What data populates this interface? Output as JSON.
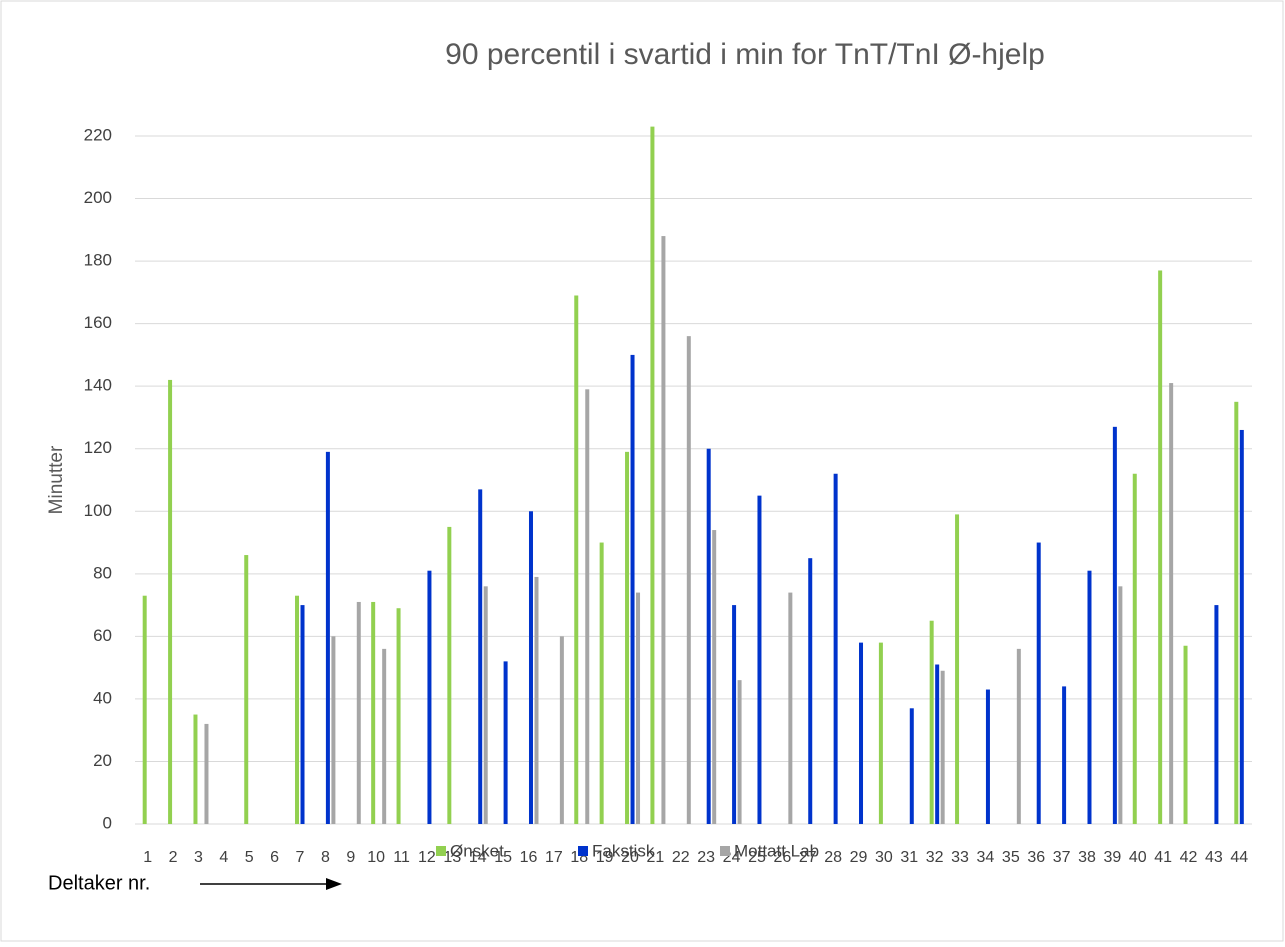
{
  "chart_data": {
    "type": "bar",
    "title": "90 percentil i svartid i min for TnT/TnI Ø-hjelp",
    "y_label": "Minutter",
    "annotation": "Deltaker nr.",
    "categories": [
      1,
      2,
      3,
      4,
      5,
      6,
      7,
      8,
      9,
      10,
      11,
      12,
      13,
      14,
      15,
      16,
      17,
      18,
      19,
      20,
      21,
      22,
      23,
      24,
      25,
      26,
      27,
      28,
      29,
      30,
      31,
      32,
      33,
      34,
      35,
      36,
      37,
      38,
      39,
      40,
      41,
      42,
      43,
      44
    ],
    "series": [
      {
        "name": "Ønsket",
        "color": "#92d050",
        "values": [
          73,
          142,
          35,
          null,
          86,
          null,
          73,
          null,
          null,
          71,
          69,
          null,
          95,
          null,
          null,
          null,
          null,
          169,
          90,
          119,
          223,
          null,
          null,
          null,
          null,
          null,
          null,
          null,
          null,
          58,
          null,
          65,
          99,
          null,
          null,
          null,
          null,
          null,
          null,
          112,
          177,
          57,
          null,
          135
        ]
      },
      {
        "name": "Fakstisk",
        "color": "#0033cc",
        "values": [
          null,
          null,
          null,
          null,
          null,
          null,
          70,
          119,
          null,
          null,
          null,
          81,
          null,
          107,
          52,
          100,
          null,
          null,
          null,
          150,
          null,
          null,
          120,
          70,
          105,
          null,
          85,
          112,
          58,
          null,
          37,
          51,
          null,
          43,
          null,
          90,
          44,
          81,
          127,
          null,
          null,
          null,
          70,
          126
        ]
      },
      {
        "name": "Mottatt Lab",
        "color": "#a6a6a6",
        "values": [
          null,
          null,
          32,
          null,
          null,
          null,
          null,
          60,
          71,
          56,
          null,
          null,
          null,
          76,
          null,
          79,
          60,
          139,
          null,
          74,
          188,
          156,
          94,
          46,
          null,
          74,
          null,
          null,
          null,
          null,
          null,
          49,
          null,
          null,
          56,
          null,
          null,
          null,
          76,
          null,
          141,
          null,
          null,
          null
        ]
      }
    ],
    "ylim": [
      0,
      220
    ],
    "yticks": [
      0,
      20,
      40,
      60,
      80,
      100,
      120,
      140,
      160,
      180,
      200,
      220
    ],
    "grid": true,
    "legend": "bottom"
  }
}
